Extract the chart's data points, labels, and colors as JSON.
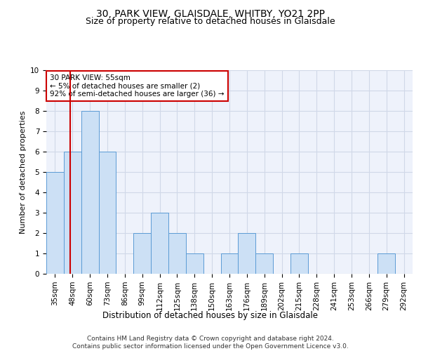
{
  "title": "30, PARK VIEW, GLAISDALE, WHITBY, YO21 2PP",
  "subtitle": "Size of property relative to detached houses in Glaisdale",
  "xlabel": "Distribution of detached houses by size in Glaisdale",
  "ylabel": "Number of detached properties",
  "categories": [
    "35sqm",
    "48sqm",
    "60sqm",
    "73sqm",
    "86sqm",
    "99sqm",
    "112sqm",
    "125sqm",
    "138sqm",
    "150sqm",
    "163sqm",
    "176sqm",
    "189sqm",
    "202sqm",
    "215sqm",
    "228sqm",
    "241sqm",
    "253sqm",
    "266sqm",
    "279sqm",
    "292sqm"
  ],
  "values": [
    5,
    6,
    8,
    6,
    0,
    2,
    3,
    2,
    1,
    0,
    1,
    2,
    1,
    0,
    1,
    0,
    0,
    0,
    0,
    1,
    0
  ],
  "bar_color": "#cce0f5",
  "bar_edge_color": "#5b9bd5",
  "grid_color": "#d0d8e8",
  "background_color": "#eef2fb",
  "vline_color": "#cc0000",
  "vline_x": 0.85,
  "annotation_text": "30 PARK VIEW: 55sqm\n← 5% of detached houses are smaller (2)\n92% of semi-detached houses are larger (36) →",
  "annotation_box_color": "#ffffff",
  "annotation_box_edge": "#cc0000",
  "ylim": [
    0,
    10
  ],
  "yticks": [
    0,
    1,
    2,
    3,
    4,
    5,
    6,
    7,
    8,
    9,
    10
  ],
  "footnote": "Contains HM Land Registry data © Crown copyright and database right 2024.\nContains public sector information licensed under the Open Government Licence v3.0.",
  "title_fontsize": 10,
  "subtitle_fontsize": 9,
  "ylabel_fontsize": 8,
  "xlabel_fontsize": 8.5,
  "tick_fontsize": 7.5,
  "annotation_fontsize": 7.5,
  "footnote_fontsize": 6.5
}
